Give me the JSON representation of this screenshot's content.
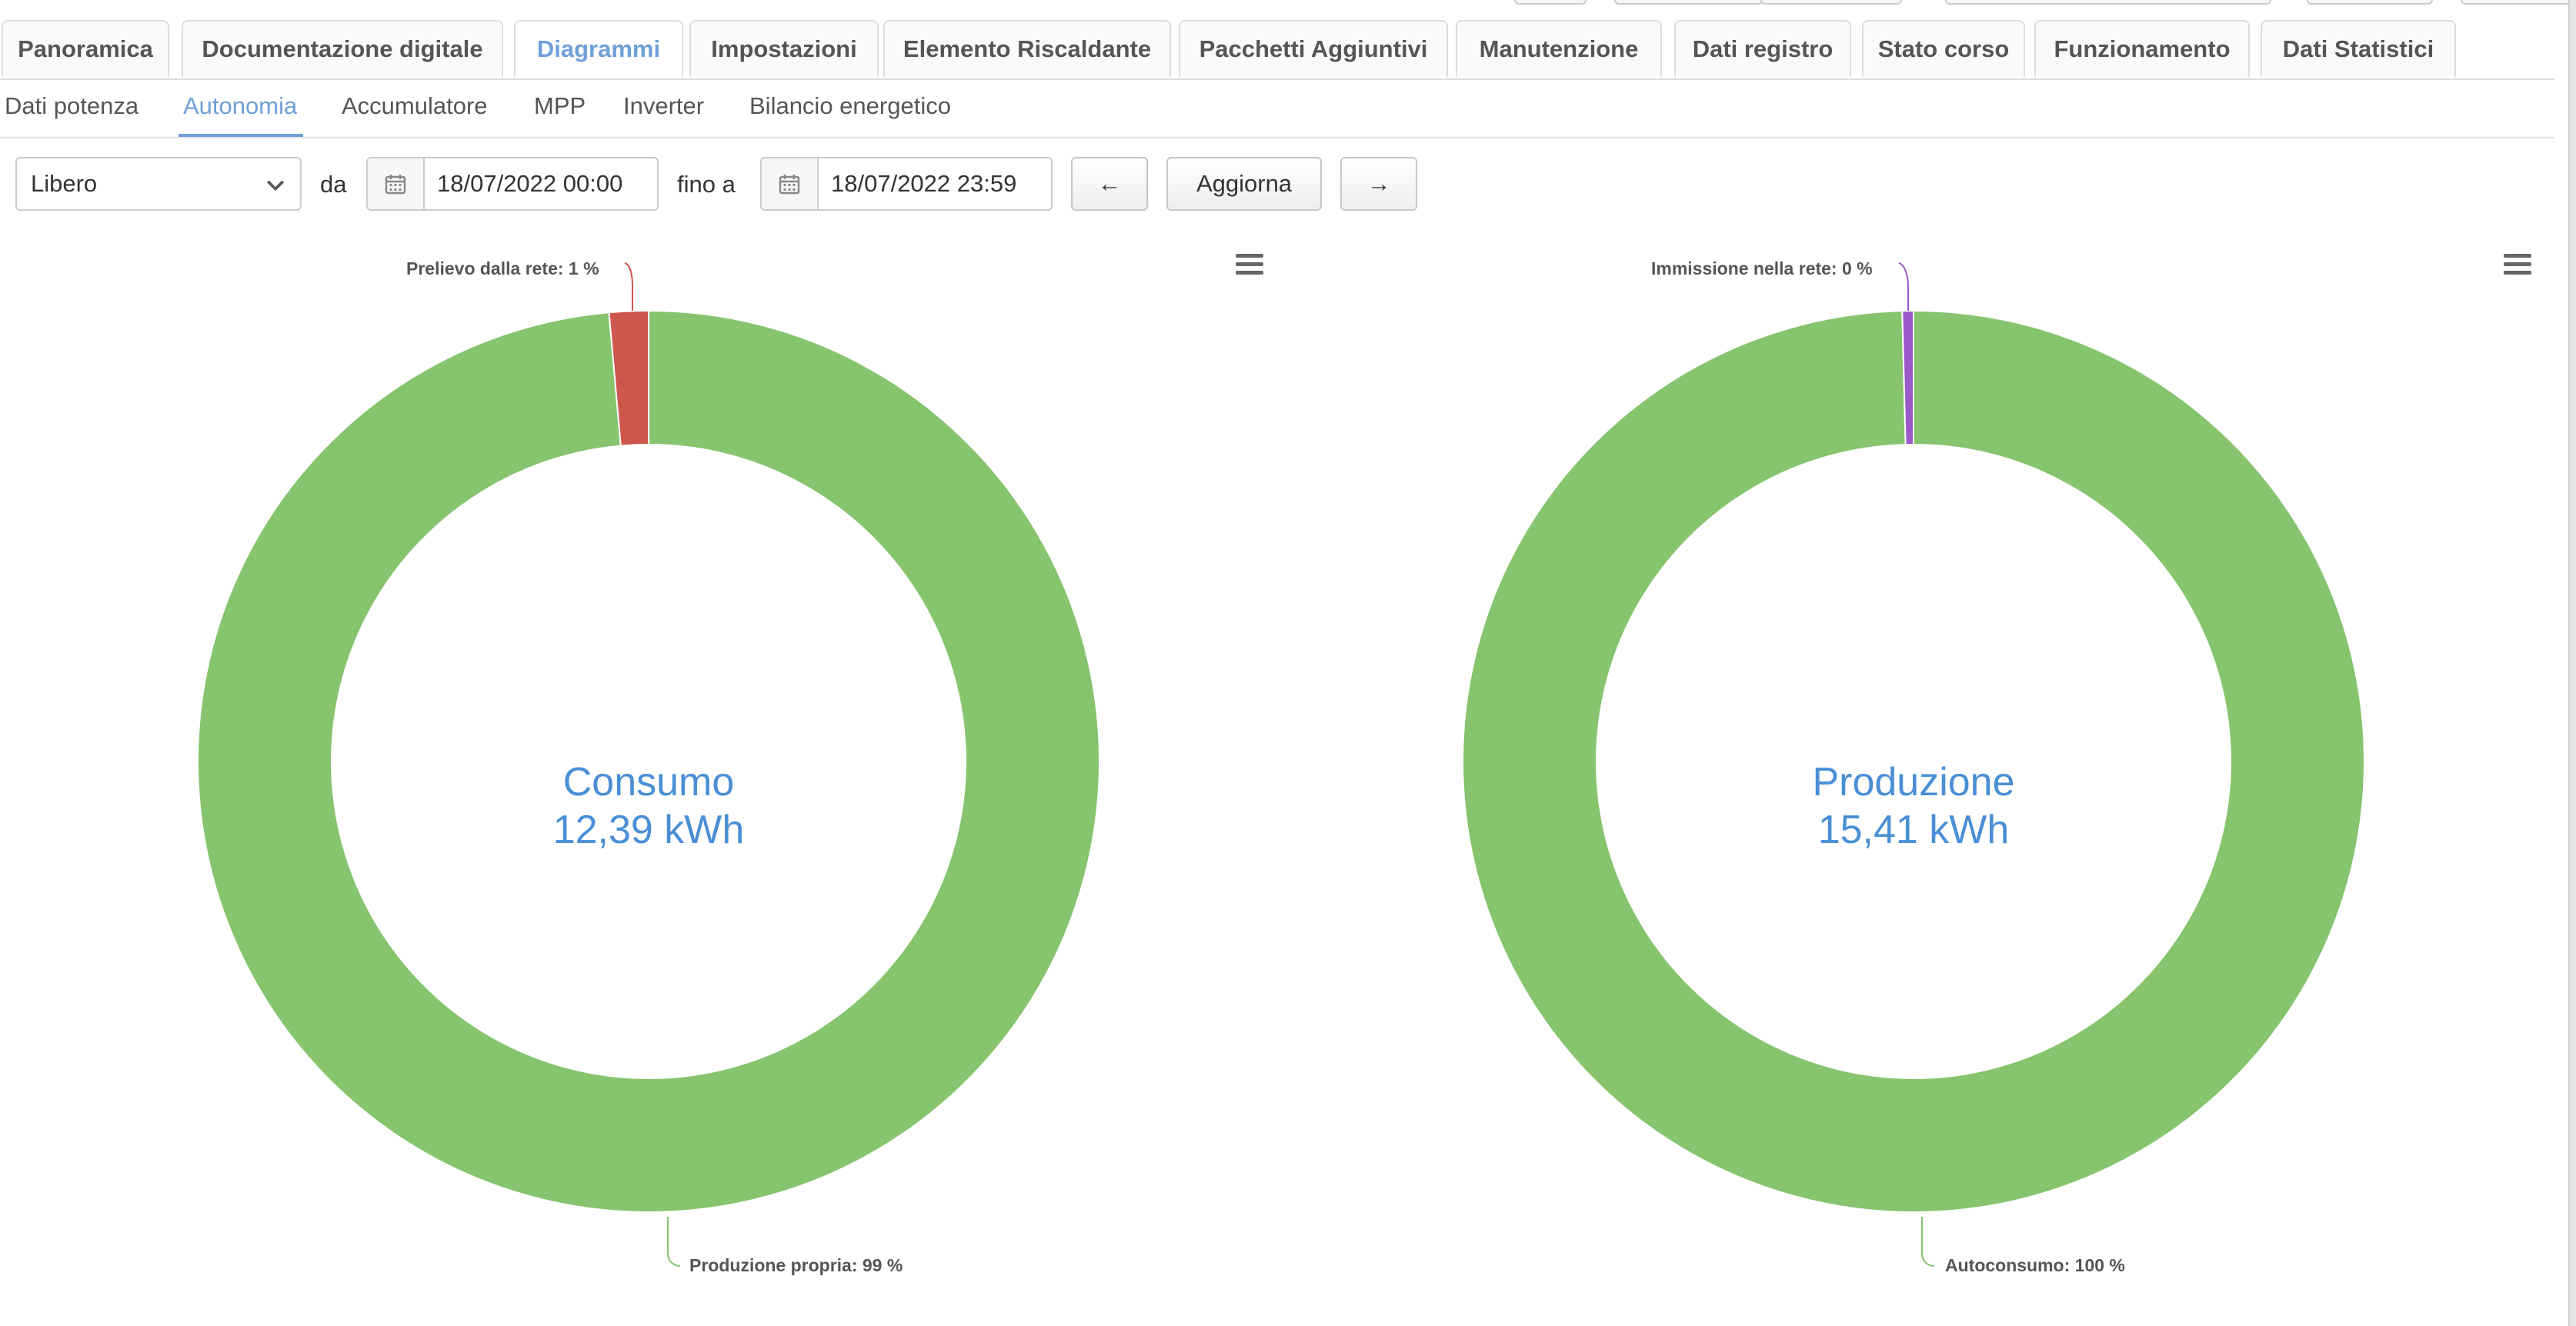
{
  "main_tabs": [
    {
      "label": "Panoramica",
      "active": false
    },
    {
      "label": "Documentazione digitale",
      "active": false
    },
    {
      "label": "Diagrammi",
      "active": true
    },
    {
      "label": "Impostazioni",
      "active": false
    },
    {
      "label": "Elemento Riscaldante",
      "active": false
    },
    {
      "label": "Pacchetti Aggiuntivi",
      "active": false
    },
    {
      "label": "Manutenzione",
      "active": false
    },
    {
      "label": "Dati registro",
      "active": false
    },
    {
      "label": "Stato corso",
      "active": false
    },
    {
      "label": "Funzionamento",
      "active": false
    },
    {
      "label": "Dati Statistici",
      "active": false
    }
  ],
  "sub_tabs": [
    {
      "label": "Dati potenza",
      "active": false
    },
    {
      "label": "Autonomia",
      "active": true
    },
    {
      "label": "Accumulatore",
      "active": false
    },
    {
      "label": "MPP",
      "active": false
    },
    {
      "label": "Inverter",
      "active": false
    },
    {
      "label": "Bilancio energetico",
      "active": false
    }
  ],
  "toolbar": {
    "period_select": "Libero",
    "from_label": "da",
    "from_value": "18/07/2022 00:00",
    "to_label": "fino a",
    "to_value": "18/07/2022 23:59",
    "prev_label": "←",
    "refresh_label": "Aggiorna",
    "next_label": "→"
  },
  "colors": {
    "accent": "#6f9fd8",
    "green": "#86c46e",
    "red": "#cd574d",
    "purple": "#9b59c9",
    "center_text": "#4a8fd6"
  },
  "icons": {
    "menu": "hamburger-menu-icon",
    "calendar": "calendar-icon",
    "dropdown": "chevron-down-icon"
  },
  "chart_data": [
    {
      "type": "pie",
      "center_title": "Consumo",
      "center_value": "12,39 kWh",
      "slices": [
        {
          "label": "Produzione propria: 99 %",
          "value": 98.6,
          "color": "#86c46e"
        },
        {
          "label": "Prelievo dalla rete: 1 %",
          "value": 1.4,
          "color": "#cd574d"
        }
      ]
    },
    {
      "type": "pie",
      "center_title": "Produzione",
      "center_value": "15,41 kWh",
      "slices": [
        {
          "label": "Autoconsumo: 100 %",
          "value": 99.6,
          "color": "#86c46e"
        },
        {
          "label": "Immissione nella rete: 0 %",
          "value": 0.4,
          "color": "#9b59c9"
        }
      ]
    }
  ]
}
